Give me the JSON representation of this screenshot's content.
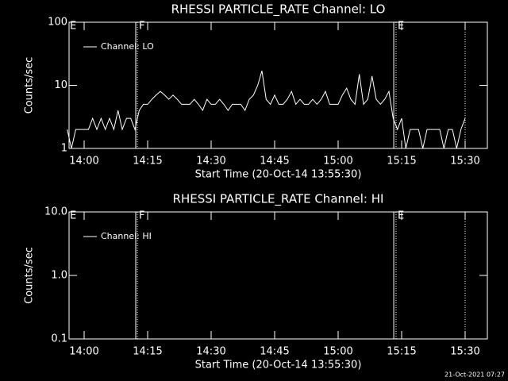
{
  "chart_data": [
    {
      "type": "line",
      "title": "RHESSI PARTICLE_RATE Channel: LO",
      "xlabel": "Start Time (20-Oct-14 13:55:30)",
      "ylabel": "Counts/sec",
      "log_y": true,
      "ylim": [
        1,
        100
      ],
      "yticks": [
        1,
        10,
        100
      ],
      "xlim": [
        "13:56:26",
        "15:35:15"
      ],
      "xticks": [
        "14:00",
        "14:15",
        "14:30",
        "14:45",
        "15:00",
        "15:15",
        "15:30"
      ],
      "legend": "upper left",
      "x": [
        "13:56",
        "13:57",
        "13:58",
        "13:59",
        "14:00",
        "14:01",
        "14:02",
        "14:03",
        "14:04",
        "14:05",
        "14:06",
        "14:07",
        "14:08",
        "14:09",
        "14:10",
        "14:11",
        "14:12",
        "14:13",
        "14:14",
        "14:15",
        "14:16",
        "14:17",
        "14:18",
        "14:19",
        "14:20",
        "14:21",
        "14:22",
        "14:23",
        "14:24",
        "14:25",
        "14:26",
        "14:27",
        "14:28",
        "14:29",
        "14:30",
        "14:31",
        "14:32",
        "14:33",
        "14:34",
        "14:35",
        "14:36",
        "14:37",
        "14:38",
        "14:39",
        "14:40",
        "14:41",
        "14:42",
        "14:43",
        "14:44",
        "14:45",
        "14:46",
        "14:47",
        "14:48",
        "14:49",
        "14:50",
        "14:51",
        "14:52",
        "14:53",
        "14:54",
        "14:55",
        "14:56",
        "14:57",
        "14:58",
        "14:59",
        "15:00",
        "15:01",
        "15:02",
        "15:03",
        "15:04",
        "15:05",
        "15:06",
        "15:07",
        "15:08",
        "15:09",
        "15:10",
        "15:11",
        "15:12",
        "15:13",
        "15:14",
        "15:15",
        "15:16",
        "15:17",
        "15:18",
        "15:19",
        "15:20",
        "15:21",
        "15:22",
        "15:23",
        "15:24",
        "15:25",
        "15:26",
        "15:27",
        "15:28",
        "15:29",
        "15:30"
      ],
      "series": [
        {
          "name": "Channel: LO",
          "color": "#ffffff",
          "values": [
            2,
            1,
            2,
            2,
            2,
            2,
            3,
            2,
            3,
            2,
            3,
            2,
            4,
            2,
            3,
            3,
            2,
            4,
            5,
            5,
            6,
            7,
            8,
            7,
            6,
            7,
            6,
            5,
            5,
            5,
            6,
            5,
            4,
            6,
            5,
            5,
            6,
            5,
            4,
            5,
            5,
            5,
            4,
            6,
            7,
            10,
            17,
            6,
            5,
            7,
            5,
            5,
            6,
            8,
            5,
            6,
            5,
            5,
            6,
            5,
            6,
            8,
            5,
            5,
            5,
            7,
            9,
            6,
            5,
            15,
            5,
            6,
            14,
            6,
            5,
            6,
            8,
            3,
            2,
            3,
            1,
            2,
            2,
            2,
            1,
            2,
            2,
            2,
            2,
            1,
            2,
            2,
            1,
            2,
            3
          ]
        }
      ],
      "lines": [
        {
          "x": "14:12:11",
          "style": "solid"
        },
        {
          "x": "14:12:34",
          "style": "dotted"
        },
        {
          "x": "15:13:08",
          "style": "solid"
        },
        {
          "x": "15:13:41",
          "style": "dotted"
        },
        {
          "x": "15:30:00",
          "style": "dotted"
        }
      ],
      "flags": [
        {
          "x": "13:56:26",
          "label": "E"
        },
        {
          "x": "14:12:45",
          "label": "F"
        },
        {
          "x": "15:13:53",
          "label": "E"
        }
      ]
    },
    {
      "type": "line",
      "title": "RHESSI PARTICLE_RATE Channel: HI",
      "xlabel": "Start Time (20-Oct-14 13:55:30)",
      "ylabel": "Counts/sec",
      "log_y": true,
      "ylim": [
        0.1,
        10
      ],
      "yticks": [
        0.1,
        {
          "value": 1,
          "label": "1.0"
        },
        {
          "value": 10,
          "label": "10.0"
        }
      ],
      "xlim": [
        "13:56:26",
        "15:35:15"
      ],
      "xticks": [
        "14:00",
        "14:15",
        "14:30",
        "14:45",
        "15:00",
        "15:15",
        "15:30"
      ],
      "legend": "upper left",
      "x": [],
      "series": [
        {
          "name": "Channel: HI",
          "color": "#ffffff",
          "values": []
        }
      ],
      "lines": [
        {
          "x": "14:12:11",
          "style": "solid"
        },
        {
          "x": "14:12:34",
          "style": "dotted"
        },
        {
          "x": "15:13:08",
          "style": "solid"
        },
        {
          "x": "15:13:41",
          "style": "dotted"
        },
        {
          "x": "15:30:00",
          "style": "dotted"
        }
      ],
      "flags": [
        {
          "x": "13:56:26",
          "label": "E"
        },
        {
          "x": "14:12:45",
          "label": "F"
        },
        {
          "x": "15:13:53",
          "label": "E"
        }
      ]
    }
  ],
  "footer": "21-Oct-2021 07:27"
}
